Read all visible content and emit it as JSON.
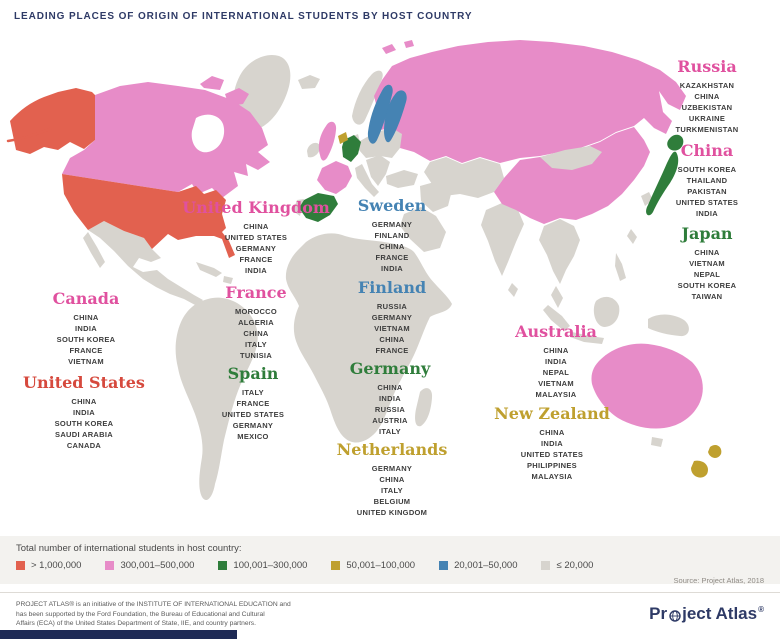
{
  "title": "LEADING PLACES OF ORIGIN OF INTERNATIONAL STUDENTS BY HOST COUNTRY",
  "colors": {
    "navy": "#2e3a66",
    "red": "#d6493d",
    "pink": "#e0519f",
    "green": "#2f7d3b",
    "gold": "#bfa02f",
    "blue": "#4583b3",
    "map_red": "#e2614f",
    "map_pink": "#e78cc8",
    "map_green": "#2f7d3b",
    "map_gold": "#bfa02f",
    "map_blue": "#4583b3",
    "map_gray": "#d7d4ce"
  },
  "host_countries": [
    {
      "name": "United States",
      "category": "red",
      "origins": [
        "CHINA",
        "INDIA",
        "SOUTH KOREA",
        "SAUDI ARABIA",
        "CANADA"
      ]
    },
    {
      "name": "Canada",
      "category": "pink",
      "origins": [
        "CHINA",
        "INDIA",
        "SOUTH KOREA",
        "FRANCE",
        "VIETNAM"
      ]
    },
    {
      "name": "United Kingdom",
      "category": "pink",
      "origins": [
        "CHINA",
        "UNITED STATES",
        "GERMANY",
        "FRANCE",
        "INDIA"
      ]
    },
    {
      "name": "France",
      "category": "pink",
      "origins": [
        "MOROCCO",
        "ALGERIA",
        "CHINA",
        "ITALY",
        "TUNISIA"
      ]
    },
    {
      "name": "Spain",
      "category": "green",
      "origins": [
        "ITALY",
        "FRANCE",
        "UNITED STATES",
        "GERMANY",
        "MEXICO"
      ]
    },
    {
      "name": "Sweden",
      "category": "blue",
      "origins": [
        "GERMANY",
        "FINLAND",
        "CHINA",
        "FRANCE",
        "INDIA"
      ]
    },
    {
      "name": "Finland",
      "category": "blue",
      "origins": [
        "RUSSIA",
        "GERMANY",
        "VIETNAM",
        "CHINA",
        "FRANCE"
      ]
    },
    {
      "name": "Germany",
      "category": "green",
      "origins": [
        "CHINA",
        "INDIA",
        "RUSSIA",
        "AUSTRIA",
        "ITALY"
      ]
    },
    {
      "name": "Netherlands",
      "category": "gold",
      "origins": [
        "GERMANY",
        "CHINA",
        "ITALY",
        "BELGIUM",
        "UNITED KINGDOM"
      ]
    },
    {
      "name": "Russia",
      "category": "pink",
      "origins": [
        "KAZAKHSTAN",
        "CHINA",
        "UZBEKISTAN",
        "UKRAINE",
        "TURKMENISTAN"
      ]
    },
    {
      "name": "China",
      "category": "pink",
      "origins": [
        "SOUTH KOREA",
        "THAILAND",
        "PAKISTAN",
        "UNITED STATES",
        "INDIA"
      ]
    },
    {
      "name": "Japan",
      "category": "green",
      "origins": [
        "CHINA",
        "VIETNAM",
        "NEPAL",
        "SOUTH KOREA",
        "TAIWAN"
      ]
    },
    {
      "name": "Australia",
      "category": "pink",
      "origins": [
        "CHINA",
        "INDIA",
        "NEPAL",
        "VIETNAM",
        "MALAYSIA"
      ]
    },
    {
      "name": "New Zealand",
      "category": "gold",
      "origins": [
        "CHINA",
        "INDIA",
        "UNITED STATES",
        "PHILIPPINES",
        "MALAYSIA"
      ]
    }
  ],
  "legend": {
    "label": "Total number of international students in host country:",
    "items": [
      {
        "label": "> 1,000,000",
        "color_key": "map_red"
      },
      {
        "label": "300,001–500,000",
        "color_key": "map_pink"
      },
      {
        "label": "100,001–300,000",
        "color_key": "map_green"
      },
      {
        "label": "50,001–100,000",
        "color_key": "map_gold"
      },
      {
        "label": "20,001–50,000",
        "color_key": "map_blue"
      },
      {
        "label": "≤ 20,000",
        "color_key": "map_gray"
      }
    ]
  },
  "source": "Source: Project Atlas, 2018",
  "footer": "PROJECT ATLAS® is an initiative of the INSTITUTE OF INTERNATIONAL EDUCATION and\nhas been supported by the Ford Foundation, the Bureau of Educational and Cultural\nAffairs (ECA) of the United States Department of State, IIE, and country partners.",
  "logo": {
    "pre": "Pr",
    "post": "ject Atlas",
    "registered": "®"
  },
  "chart_data": {
    "type": "heatmap",
    "title": "Leading Places of Origin of International Students by Host Country",
    "legend_label": "Total number of international students in host country:",
    "legend_bins": [
      "> 1,000,000",
      "300,001–500,000",
      "100,001–300,000",
      "50,001–100,000",
      "20,001–50,000",
      "≤ 20,000"
    ],
    "series": [
      {
        "name": "United States",
        "bin": "> 1,000,000",
        "origins": [
          "China",
          "India",
          "South Korea",
          "Saudi Arabia",
          "Canada"
        ]
      },
      {
        "name": "Canada",
        "bin": "300,001–500,000",
        "origins": [
          "China",
          "India",
          "South Korea",
          "France",
          "Vietnam"
        ]
      },
      {
        "name": "United Kingdom",
        "bin": "300,001–500,000",
        "origins": [
          "China",
          "United States",
          "Germany",
          "France",
          "India"
        ]
      },
      {
        "name": "France",
        "bin": "300,001–500,000",
        "origins": [
          "Morocco",
          "Algeria",
          "China",
          "Italy",
          "Tunisia"
        ]
      },
      {
        "name": "Spain",
        "bin": "100,001–300,000",
        "origins": [
          "Italy",
          "France",
          "United States",
          "Germany",
          "Mexico"
        ]
      },
      {
        "name": "Sweden",
        "bin": "20,001–50,000",
        "origins": [
          "Germany",
          "Finland",
          "China",
          "France",
          "India"
        ]
      },
      {
        "name": "Finland",
        "bin": "20,001–50,000",
        "origins": [
          "Russia",
          "Germany",
          "Vietnam",
          "China",
          "France"
        ]
      },
      {
        "name": "Germany",
        "bin": "100,001–300,000",
        "origins": [
          "China",
          "India",
          "Russia",
          "Austria",
          "Italy"
        ]
      },
      {
        "name": "Netherlands",
        "bin": "50,001–100,000",
        "origins": [
          "Germany",
          "China",
          "Italy",
          "Belgium",
          "United Kingdom"
        ]
      },
      {
        "name": "Russia",
        "bin": "300,001–500,000",
        "origins": [
          "Kazakhstan",
          "China",
          "Uzbekistan",
          "Ukraine",
          "Turkmenistan"
        ]
      },
      {
        "name": "China",
        "bin": "300,001–500,000",
        "origins": [
          "South Korea",
          "Thailand",
          "Pakistan",
          "United States",
          "India"
        ]
      },
      {
        "name": "Japan",
        "bin": "100,001–300,000",
        "origins": [
          "China",
          "Vietnam",
          "Nepal",
          "South Korea",
          "Taiwan"
        ]
      },
      {
        "name": "Australia",
        "bin": "300,001–500,000",
        "origins": [
          "China",
          "India",
          "Nepal",
          "Vietnam",
          "Malaysia"
        ]
      },
      {
        "name": "New Zealand",
        "bin": "50,001–100,000",
        "origins": [
          "China",
          "India",
          "United States",
          "Philippines",
          "Malaysia"
        ]
      }
    ],
    "source": "Source: Project Atlas, 2018"
  }
}
